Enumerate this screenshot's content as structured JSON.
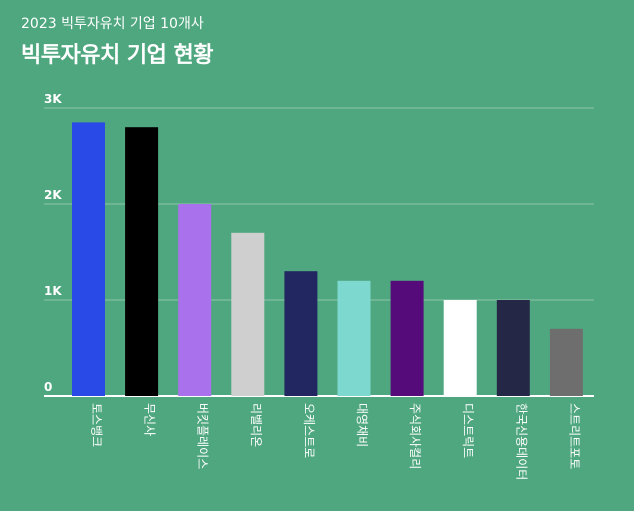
{
  "header": {
    "subtitle": "2023 빅투자유치 기업 10개사",
    "title": "빅투자유치 기업 현황"
  },
  "chart_data": {
    "type": "bar",
    "title": "빅투자유치 기업 현황",
    "subtitle": "2023 빅투자유치 기업 10개사",
    "categories": [
      "토스뱅크",
      "무신사",
      "버킷플레이스",
      "리벨리온",
      "오케스트로",
      "대영채비",
      "주식회사컬리",
      "디스트릭트",
      "한국신용데이터",
      "스트리트포토"
    ],
    "values": [
      2850,
      2800,
      2000,
      1700,
      1300,
      1200,
      1200,
      1000,
      1000,
      700
    ],
    "colors": [
      "#2a4ae8",
      "#000000",
      "#a972ec",
      "#d0cfcf",
      "#222761",
      "#7dd8d0",
      "#560b7a",
      "#ffffff",
      "#242846",
      "#6e6e6e"
    ],
    "y_ticks": [
      {
        "value": 0,
        "label": "0"
      },
      {
        "value": 1000,
        "label": "1K"
      },
      {
        "value": 2000,
        "label": "2K"
      },
      {
        "value": 3000,
        "label": "3K"
      }
    ],
    "ylim": [
      0,
      3000
    ],
    "grid": true,
    "xlabel": "",
    "ylabel": ""
  }
}
